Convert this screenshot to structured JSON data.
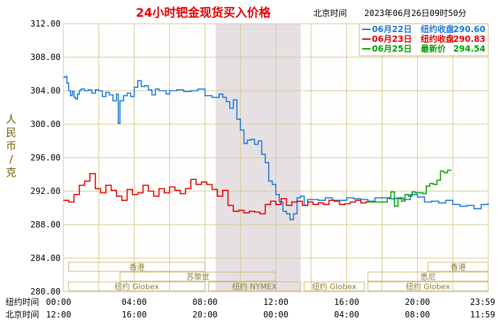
{
  "chart_data": {
    "type": "line",
    "title": "24小时钯金现货买入价格",
    "subtitle_zone": "北京时间",
    "timestamp": "2023年06月26日09时50分",
    "ylabel": "人民币/克",
    "ylim": [
      280,
      312
    ],
    "yticks": [
      "312.00",
      "308.00",
      "304.00",
      "300.00",
      "296.00",
      "292.00",
      "288.00",
      "284.00",
      "280.00"
    ],
    "row_labels": [
      "纽约时间",
      "北京时间"
    ],
    "xticks_ny": [
      "00:00",
      "04:00",
      "08:00",
      "12:00",
      "16:00",
      "20:00",
      "23:59"
    ],
    "xticks_bj": [
      "12:00",
      "16:00",
      "20:00",
      "00:00",
      "04:00",
      "08:00",
      "11:59"
    ],
    "grid": true,
    "legend_position": "top-right",
    "shaded_session": {
      "from_hour": 8.6,
      "to_hour": 13.4,
      "color": "#e6e0e4"
    },
    "markets": [
      {
        "name": "香港",
        "row": 1,
        "from": 0.3,
        "to": 8.0
      },
      {
        "name": "苏黎世",
        "row": 2,
        "from": 3.2,
        "to": 12.0
      },
      {
        "name": "纽约 Globex",
        "row": 3,
        "from": 0.3,
        "to": 8.0
      },
      {
        "name": "纽约 NYMEX",
        "row": 3,
        "from": 8.2,
        "to": 13.4
      },
      {
        "name": "纽约 Globex",
        "row": 3,
        "from": 13.6,
        "to": 17.0
      },
      {
        "name": "悉尼",
        "row": 2,
        "from": 17.2,
        "to": 24.0
      },
      {
        "name": "香港",
        "row": 1,
        "from": 20.6,
        "to": 24.0
      },
      {
        "name": "纽约 Globex",
        "row": 3,
        "from": 17.2,
        "to": 24.0
      }
    ],
    "series": [
      {
        "name": "06月22日",
        "legend_label": "纽约收盘",
        "legend_value": "290.60",
        "color": "#1a78d6",
        "x": [
          0,
          0.1,
          0.2,
          0.3,
          0.4,
          0.5,
          0.6,
          0.7,
          0.8,
          0.9,
          1.0,
          1.2,
          1.4,
          1.6,
          1.8,
          2.0,
          2.2,
          2.4,
          2.6,
          2.8,
          3.0,
          3.1,
          3.2,
          3.4,
          3.6,
          3.8,
          4.0,
          4.2,
          4.4,
          4.6,
          4.8,
          5.0,
          5.2,
          5.4,
          5.6,
          5.8,
          6.0,
          6.4,
          6.8,
          7.2,
          7.6,
          8.0,
          8.4,
          8.8,
          9.0,
          9.2,
          9.4,
          9.6,
          9.8,
          10.0,
          10.2,
          10.4,
          10.6,
          10.8,
          11.0,
          11.2,
          11.4,
          11.6,
          11.8,
          12.0,
          12.2,
          12.4,
          12.6,
          12.8,
          13.0,
          13.2,
          13.4,
          13.6,
          13.8,
          14.0,
          14.4,
          14.8,
          15.2,
          15.6,
          16.0,
          16.4,
          16.8,
          17.2,
          17.6,
          18.0,
          18.4,
          18.8,
          19.2,
          19.6,
          20.0,
          20.4,
          20.8,
          21.2,
          21.6,
          22.0,
          22.4,
          22.8,
          23.2,
          23.6,
          23.99
        ],
        "values": [
          305.6,
          305.7,
          304.9,
          304.0,
          303.4,
          303.9,
          303.2,
          303.0,
          303.6,
          304.0,
          304.2,
          304.0,
          304.1,
          303.7,
          304.1,
          304.0,
          303.3,
          303.8,
          303.5,
          302.8,
          303.6,
          300.1,
          302.8,
          303.4,
          303.7,
          303.3,
          304.4,
          305.2,
          304.5,
          304.6,
          304.1,
          303.5,
          304.2,
          304.0,
          304.0,
          303.6,
          304.0,
          304.1,
          303.9,
          304.0,
          304.2,
          303.4,
          303.2,
          303.6,
          303.2,
          302.7,
          301.9,
          302.9,
          300.6,
          299.3,
          297.7,
          298.1,
          298.2,
          297.6,
          298.0,
          296.4,
          295.4,
          293.2,
          292.8,
          291.6,
          290.7,
          289.6,
          289.3,
          288.6,
          289.3,
          291.2,
          291.4,
          290.3,
          291.0,
          291.0,
          290.9,
          291.2,
          290.9,
          290.9,
          291.2,
          291.1,
          291.0,
          290.8,
          291.2,
          291.2,
          291.1,
          291.2,
          291.0,
          291.6,
          291.3,
          290.7,
          290.8,
          290.6,
          290.9,
          290.4,
          290.2,
          290.3,
          289.9,
          290.4,
          290.6
        ]
      },
      {
        "name": "06月23日",
        "legend_label": "纽约收盘",
        "legend_value": "290.83",
        "color": "#e10000",
        "x": [
          0,
          0.3,
          0.6,
          0.9,
          1.2,
          1.5,
          1.8,
          2.1,
          2.4,
          2.7,
          3.0,
          3.3,
          3.6,
          3.9,
          4.2,
          4.5,
          4.8,
          5.1,
          5.4,
          5.7,
          6.0,
          6.3,
          6.6,
          6.9,
          7.2,
          7.5,
          7.8,
          8.1,
          8.4,
          8.7,
          9.0,
          9.3,
          9.6,
          9.9,
          10.2,
          10.5,
          10.8,
          11.1,
          11.4,
          11.7,
          12.0,
          12.3,
          12.6,
          12.9,
          13.2,
          13.5,
          13.8,
          14.1,
          14.4,
          14.7,
          15.0,
          15.3,
          15.6,
          15.9,
          16.2,
          16.5,
          16.8,
          17.1
        ],
        "values": [
          290.9,
          290.7,
          291.6,
          292.7,
          293.2,
          294.1,
          292.3,
          291.8,
          292.7,
          292.1,
          291.4,
          290.9,
          292.2,
          291.6,
          291.8,
          292.7,
          292.0,
          291.4,
          292.3,
          291.8,
          292.5,
          292.1,
          291.7,
          292.3,
          293.4,
          292.8,
          293.1,
          292.8,
          292.2,
          291.4,
          292.1,
          290.3,
          289.6,
          289.7,
          289.4,
          289.6,
          289.5,
          289.3,
          290.4,
          290.8,
          290.4,
          291.1,
          290.3,
          290.7,
          290.8,
          290.3,
          290.7,
          290.4,
          290.6,
          290.4,
          290.9,
          290.8,
          290.4,
          290.5,
          290.7,
          290.9,
          290.6,
          290.83
        ]
      },
      {
        "name": "06月25日",
        "legend_label": "最新价",
        "legend_value": "294.54",
        "color": "#00a000",
        "x": [
          17.1,
          17.5,
          18.0,
          18.3,
          18.5,
          18.7,
          18.9,
          19.1,
          19.3,
          19.5,
          19.7,
          19.9,
          20.1,
          20.3,
          20.5,
          20.7,
          20.9,
          21.1,
          21.3,
          21.5,
          21.7,
          21.9
        ],
        "values": [
          290.7,
          290.7,
          290.7,
          291.2,
          291.9,
          290.2,
          291.1,
          290.8,
          291.6,
          291.4,
          291.9,
          291.8,
          291.8,
          291.7,
          292.6,
          292.9,
          292.8,
          293.3,
          294.4,
          294.2,
          294.5,
          294.54
        ]
      }
    ]
  }
}
